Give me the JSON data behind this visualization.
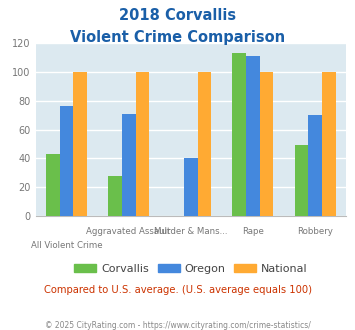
{
  "title_line1": "2018 Corvallis",
  "title_line2": "Violent Crime Comparison",
  "categories": [
    "All Violent Crime",
    "Aggravated Assault",
    "Murder & Mans...",
    "Rape",
    "Robbery"
  ],
  "label_top": [
    "",
    "Aggravated Assault",
    "Murder & Mans...",
    "Rape",
    "Robbery"
  ],
  "label_bottom": [
    "All Violent Crime",
    "",
    "",
    "",
    ""
  ],
  "corvallis": [
    43,
    28,
    0,
    113,
    49
  ],
  "oregon": [
    76,
    71,
    40,
    111,
    70
  ],
  "national": [
    100,
    100,
    100,
    100,
    100
  ],
  "corvallis_color": "#6abf4b",
  "oregon_color": "#4488dd",
  "national_color": "#ffaa33",
  "ylim": [
    0,
    120
  ],
  "yticks": [
    0,
    20,
    40,
    60,
    80,
    100,
    120
  ],
  "title_color": "#1a5fa8",
  "subtitle_note": "Compared to U.S. average. (U.S. average equals 100)",
  "subtitle_note_color": "#cc3300",
  "footer": "© 2025 CityRating.com - https://www.cityrating.com/crime-statistics/",
  "footer_color": "#888888",
  "background_color": "#dce9f0",
  "fig_background": "#ffffff",
  "bar_width": 0.22,
  "legend_labels": [
    "Corvallis",
    "Oregon",
    "National"
  ]
}
